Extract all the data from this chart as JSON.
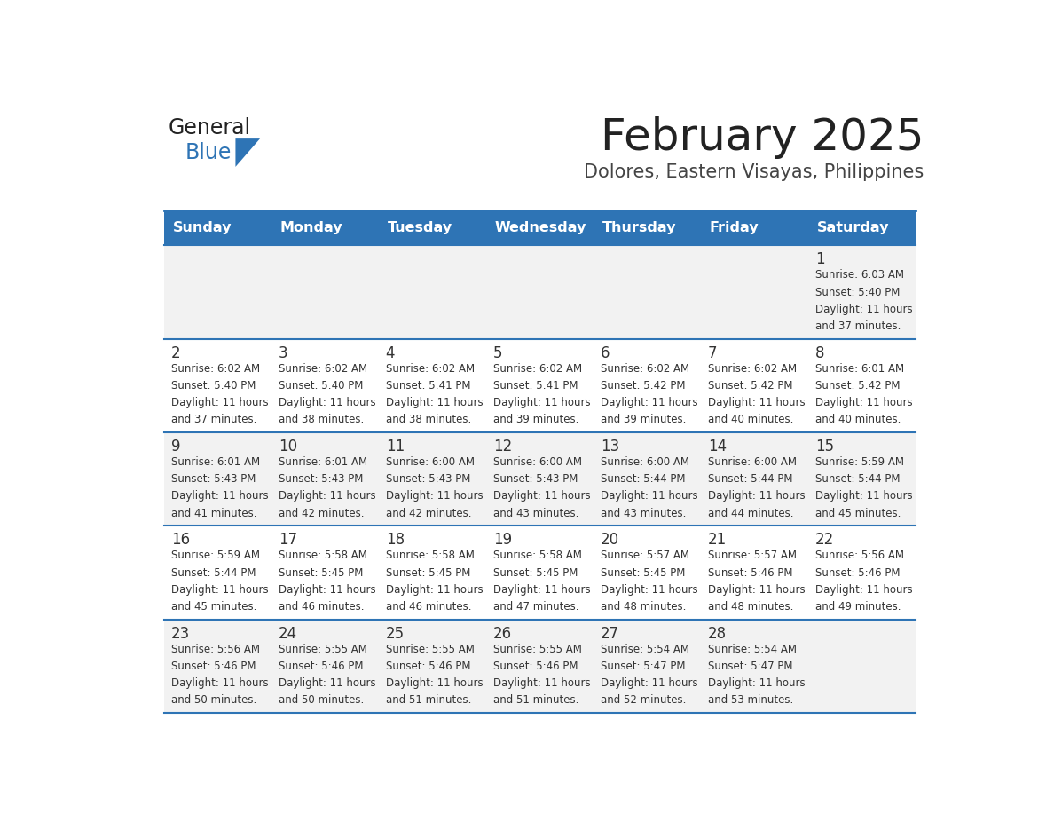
{
  "title": "February 2025",
  "subtitle": "Dolores, Eastern Visayas, Philippines",
  "header_bg": "#2E74B5",
  "header_text_color": "#FFFFFF",
  "row_bg_odd": "#F2F2F2",
  "row_bg_even": "#FFFFFF",
  "separator_color": "#2E74B5",
  "day_headers": [
    "Sunday",
    "Monday",
    "Tuesday",
    "Wednesday",
    "Thursday",
    "Friday",
    "Saturday"
  ],
  "title_color": "#222222",
  "subtitle_color": "#444444",
  "day_number_color": "#333333",
  "cell_text_color": "#333333",
  "days": [
    {
      "day": 1,
      "col": 6,
      "row": 0,
      "sunrise": "6:03 AM",
      "sunset": "5:40 PM",
      "daylight": "11 hours and 37 minutes."
    },
    {
      "day": 2,
      "col": 0,
      "row": 1,
      "sunrise": "6:02 AM",
      "sunset": "5:40 PM",
      "daylight": "11 hours and 37 minutes."
    },
    {
      "day": 3,
      "col": 1,
      "row": 1,
      "sunrise": "6:02 AM",
      "sunset": "5:40 PM",
      "daylight": "11 hours and 38 minutes."
    },
    {
      "day": 4,
      "col": 2,
      "row": 1,
      "sunrise": "6:02 AM",
      "sunset": "5:41 PM",
      "daylight": "11 hours and 38 minutes."
    },
    {
      "day": 5,
      "col": 3,
      "row": 1,
      "sunrise": "6:02 AM",
      "sunset": "5:41 PM",
      "daylight": "11 hours and 39 minutes."
    },
    {
      "day": 6,
      "col": 4,
      "row": 1,
      "sunrise": "6:02 AM",
      "sunset": "5:42 PM",
      "daylight": "11 hours and 39 minutes."
    },
    {
      "day": 7,
      "col": 5,
      "row": 1,
      "sunrise": "6:02 AM",
      "sunset": "5:42 PM",
      "daylight": "11 hours and 40 minutes."
    },
    {
      "day": 8,
      "col": 6,
      "row": 1,
      "sunrise": "6:01 AM",
      "sunset": "5:42 PM",
      "daylight": "11 hours and 40 minutes."
    },
    {
      "day": 9,
      "col": 0,
      "row": 2,
      "sunrise": "6:01 AM",
      "sunset": "5:43 PM",
      "daylight": "11 hours and 41 minutes."
    },
    {
      "day": 10,
      "col": 1,
      "row": 2,
      "sunrise": "6:01 AM",
      "sunset": "5:43 PM",
      "daylight": "11 hours and 42 minutes."
    },
    {
      "day": 11,
      "col": 2,
      "row": 2,
      "sunrise": "6:00 AM",
      "sunset": "5:43 PM",
      "daylight": "11 hours and 42 minutes."
    },
    {
      "day": 12,
      "col": 3,
      "row": 2,
      "sunrise": "6:00 AM",
      "sunset": "5:43 PM",
      "daylight": "11 hours and 43 minutes."
    },
    {
      "day": 13,
      "col": 4,
      "row": 2,
      "sunrise": "6:00 AM",
      "sunset": "5:44 PM",
      "daylight": "11 hours and 43 minutes."
    },
    {
      "day": 14,
      "col": 5,
      "row": 2,
      "sunrise": "6:00 AM",
      "sunset": "5:44 PM",
      "daylight": "11 hours and 44 minutes."
    },
    {
      "day": 15,
      "col": 6,
      "row": 2,
      "sunrise": "5:59 AM",
      "sunset": "5:44 PM",
      "daylight": "11 hours and 45 minutes."
    },
    {
      "day": 16,
      "col": 0,
      "row": 3,
      "sunrise": "5:59 AM",
      "sunset": "5:44 PM",
      "daylight": "11 hours and 45 minutes."
    },
    {
      "day": 17,
      "col": 1,
      "row": 3,
      "sunrise": "5:58 AM",
      "sunset": "5:45 PM",
      "daylight": "11 hours and 46 minutes."
    },
    {
      "day": 18,
      "col": 2,
      "row": 3,
      "sunrise": "5:58 AM",
      "sunset": "5:45 PM",
      "daylight": "11 hours and 46 minutes."
    },
    {
      "day": 19,
      "col": 3,
      "row": 3,
      "sunrise": "5:58 AM",
      "sunset": "5:45 PM",
      "daylight": "11 hours and 47 minutes."
    },
    {
      "day": 20,
      "col": 4,
      "row": 3,
      "sunrise": "5:57 AM",
      "sunset": "5:45 PM",
      "daylight": "11 hours and 48 minutes."
    },
    {
      "day": 21,
      "col": 5,
      "row": 3,
      "sunrise": "5:57 AM",
      "sunset": "5:46 PM",
      "daylight": "11 hours and 48 minutes."
    },
    {
      "day": 22,
      "col": 6,
      "row": 3,
      "sunrise": "5:56 AM",
      "sunset": "5:46 PM",
      "daylight": "11 hours and 49 minutes."
    },
    {
      "day": 23,
      "col": 0,
      "row": 4,
      "sunrise": "5:56 AM",
      "sunset": "5:46 PM",
      "daylight": "11 hours and 50 minutes."
    },
    {
      "day": 24,
      "col": 1,
      "row": 4,
      "sunrise": "5:55 AM",
      "sunset": "5:46 PM",
      "daylight": "11 hours and 50 minutes."
    },
    {
      "day": 25,
      "col": 2,
      "row": 4,
      "sunrise": "5:55 AM",
      "sunset": "5:46 PM",
      "daylight": "11 hours and 51 minutes."
    },
    {
      "day": 26,
      "col": 3,
      "row": 4,
      "sunrise": "5:55 AM",
      "sunset": "5:46 PM",
      "daylight": "11 hours and 51 minutes."
    },
    {
      "day": 27,
      "col": 4,
      "row": 4,
      "sunrise": "5:54 AM",
      "sunset": "5:47 PM",
      "daylight": "11 hours and 52 minutes."
    },
    {
      "day": 28,
      "col": 5,
      "row": 4,
      "sunrise": "5:54 AM",
      "sunset": "5:47 PM",
      "daylight": "11 hours and 53 minutes."
    }
  ],
  "num_rows": 5,
  "logo_text_general": "General",
  "logo_text_blue": "Blue",
  "logo_color_general": "#222222",
  "logo_color_blue": "#2E74B5",
  "logo_triangle_color": "#2E74B5"
}
